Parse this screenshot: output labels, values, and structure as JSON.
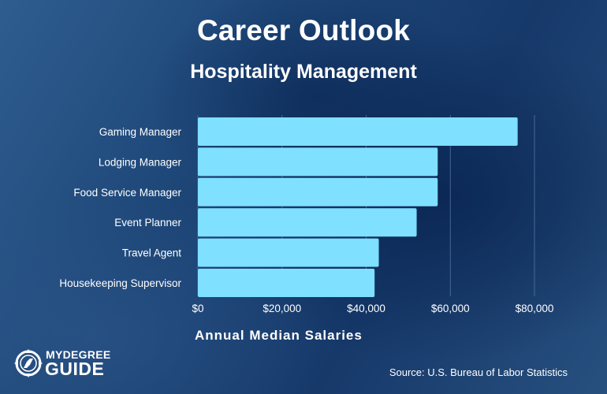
{
  "title": "Career Outlook",
  "subtitle": "Hospitality Management",
  "source": "Source: U.S. Bureau of Labor Statistics",
  "logo": {
    "line1": "MYDEGREE",
    "line2": "GUIDE"
  },
  "colors": {
    "bar": "#7fe0ff",
    "text": "#ffffff",
    "grid": "#5d7fa8"
  },
  "chart_data": {
    "type": "bar",
    "orientation": "horizontal",
    "categories": [
      "Gaming Manager",
      "Lodging Manager",
      "Food Service Manager",
      "Event Planner",
      "Travel Agent",
      "Housekeeping Supervisor"
    ],
    "values": [
      76000,
      57000,
      57000,
      52000,
      43000,
      42000
    ],
    "xlabel": "Annual Median Salaries",
    "xticks": [
      "$0",
      "$20,000",
      "$40,000",
      "$60,000",
      "$80,000"
    ],
    "xlim": [
      0,
      80000
    ],
    "grid": true
  }
}
